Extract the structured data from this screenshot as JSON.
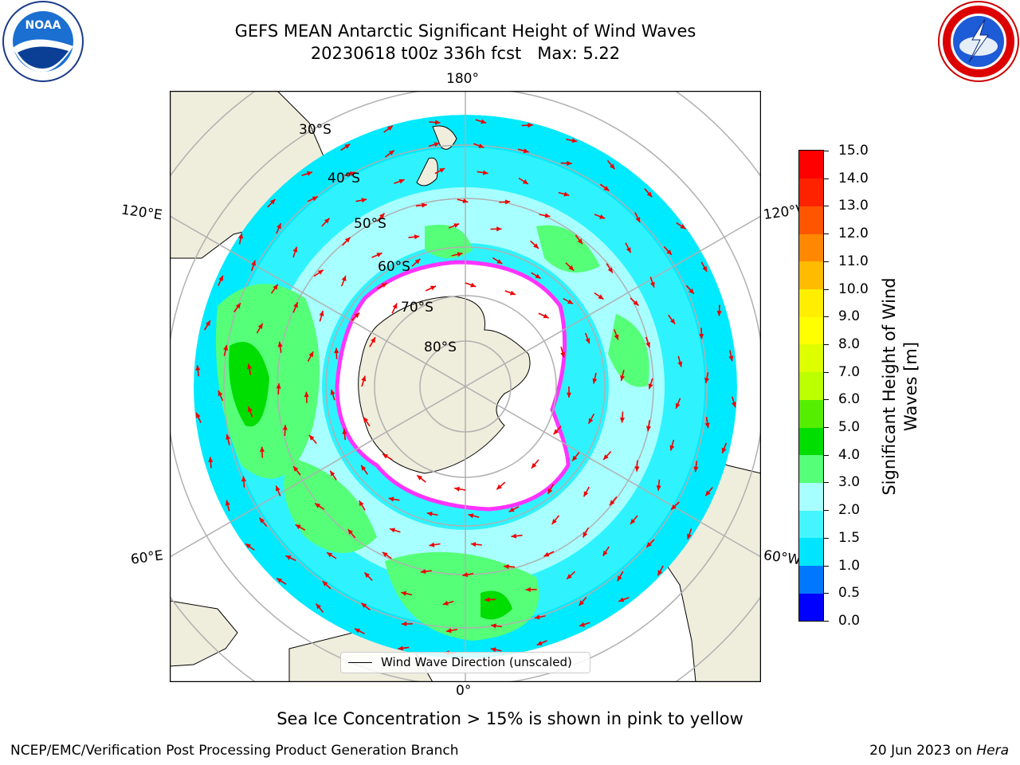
{
  "header": {
    "title_line_1": "GEFS MEAN Antarctic Significant Height of Wind Waves",
    "title_line_2": "20230618 t00z 336h fcst   Max: 5.22"
  },
  "logos": {
    "left": {
      "icon": "noaa-logo",
      "text": "NOAA"
    },
    "right": {
      "icon": "nws-logo"
    }
  },
  "map": {
    "projection": "south-polar-stereographic",
    "longitude_labels": {
      "top": "180°",
      "bottom": "0°",
      "upper_left": "120°E",
      "upper_right": "120°W",
      "lower_left": "60°E",
      "lower_right": "60°W"
    },
    "latitude_labels": [
      "30°S",
      "40°S",
      "50°S",
      "60°S",
      "70°S",
      "80°S"
    ],
    "legend_label": "Wind Wave Direction (unscaled)",
    "colors": {
      "land": "#efeddc",
      "ice": "#ffffff",
      "ice_edge": "#ff33ff",
      "arrow": "#ee0000",
      "grid": "#b0b0b0"
    }
  },
  "colorbar": {
    "label": "Significant Height of Wind Waves [m]",
    "ticks": [
      "0.0",
      "0.5",
      "1.0",
      "1.5",
      "2.0",
      "3.0",
      "4.0",
      "5.0",
      "6.0",
      "7.0",
      "8.0",
      "9.0",
      "10.0",
      "11.0",
      "12.0",
      "13.0",
      "14.0",
      "15.0"
    ],
    "colors": [
      "#0000ff",
      "#0077ff",
      "#00e5ff",
      "#44f5ff",
      "#a8ffff",
      "#55ff77",
      "#00dd00",
      "#55ee00",
      "#bbff00",
      "#ddff00",
      "#ffff00",
      "#ffee00",
      "#ffbb00",
      "#ff8800",
      "#ff5500",
      "#ff2200",
      "#ff0000"
    ]
  },
  "footer": {
    "note": "Sea Ice Concentration > 15% is shown in pink to yellow",
    "credit_left": "NCEP/EMC/Verification Post Processing Product Generation Branch",
    "credit_right_date": "20 Jun 2023 on ",
    "credit_right_machine": "Hera"
  }
}
